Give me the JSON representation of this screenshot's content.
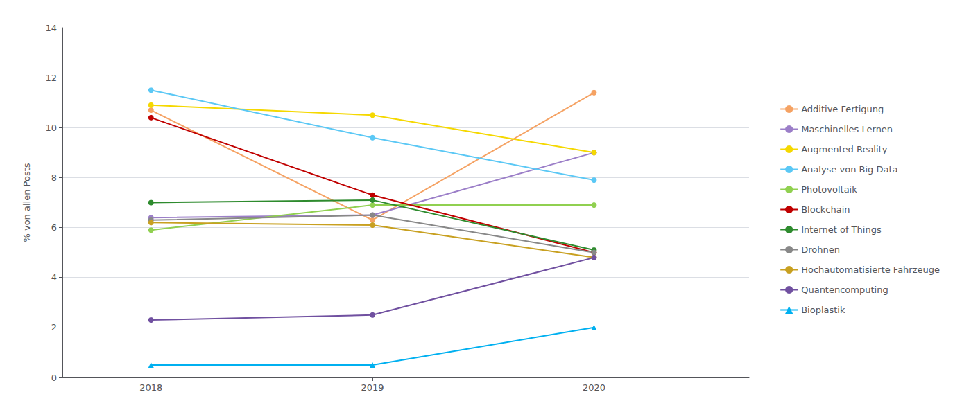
{
  "chart_data": {
    "type": "line",
    "x": [
      2018,
      2019,
      2020
    ],
    "xlim": [
      2017.6,
      2020.7
    ],
    "xticks": [
      2018,
      2019,
      2020
    ],
    "ylabel": "% von allen Posts",
    "ylim": [
      0,
      14
    ],
    "yticks": [
      0,
      2,
      4,
      6,
      8,
      10,
      12,
      14
    ],
    "grid": true,
    "legend": "right",
    "series": [
      {
        "name": "Additive Fertigung",
        "color": "#F5A263",
        "marker": "circle",
        "values": [
          10.7,
          6.3,
          11.4
        ]
      },
      {
        "name": "Maschinelles Lernen",
        "color": "#9B7EC8",
        "marker": "circle",
        "values": [
          6.4,
          6.5,
          9.0
        ]
      },
      {
        "name": "Augmented Reality",
        "color": "#F5D800",
        "marker": "circle",
        "values": [
          10.9,
          10.5,
          9.0
        ]
      },
      {
        "name": "Analyse von Big Data",
        "color": "#5BC8F5",
        "marker": "circle",
        "values": [
          11.5,
          9.6,
          7.9
        ]
      },
      {
        "name": "Photovoltaik",
        "color": "#90D050",
        "marker": "circle",
        "values": [
          5.9,
          6.9,
          6.9
        ]
      },
      {
        "name": "Blockchain",
        "color": "#C00000",
        "marker": "circle",
        "values": [
          10.4,
          7.3,
          5.0
        ]
      },
      {
        "name": "Internet of Things",
        "color": "#2E8B2E",
        "marker": "circle",
        "values": [
          7.0,
          7.1,
          5.1
        ]
      },
      {
        "name": "Drohnen",
        "color": "#888888",
        "marker": "circle",
        "values": [
          6.3,
          6.5,
          5.0
        ]
      },
      {
        "name": "Hochautomatisierte Fahrzeuge",
        "color": "#C8A020",
        "marker": "circle",
        "values": [
          6.2,
          6.1,
          4.8
        ]
      },
      {
        "name": "Quantencomputing",
        "color": "#7050A0",
        "marker": "circle",
        "values": [
          2.3,
          2.5,
          4.8
        ]
      },
      {
        "name": "Bioplastik",
        "color": "#00B0F0",
        "marker": "triangle",
        "values": [
          0.5,
          0.5,
          2.0
        ]
      }
    ]
  }
}
